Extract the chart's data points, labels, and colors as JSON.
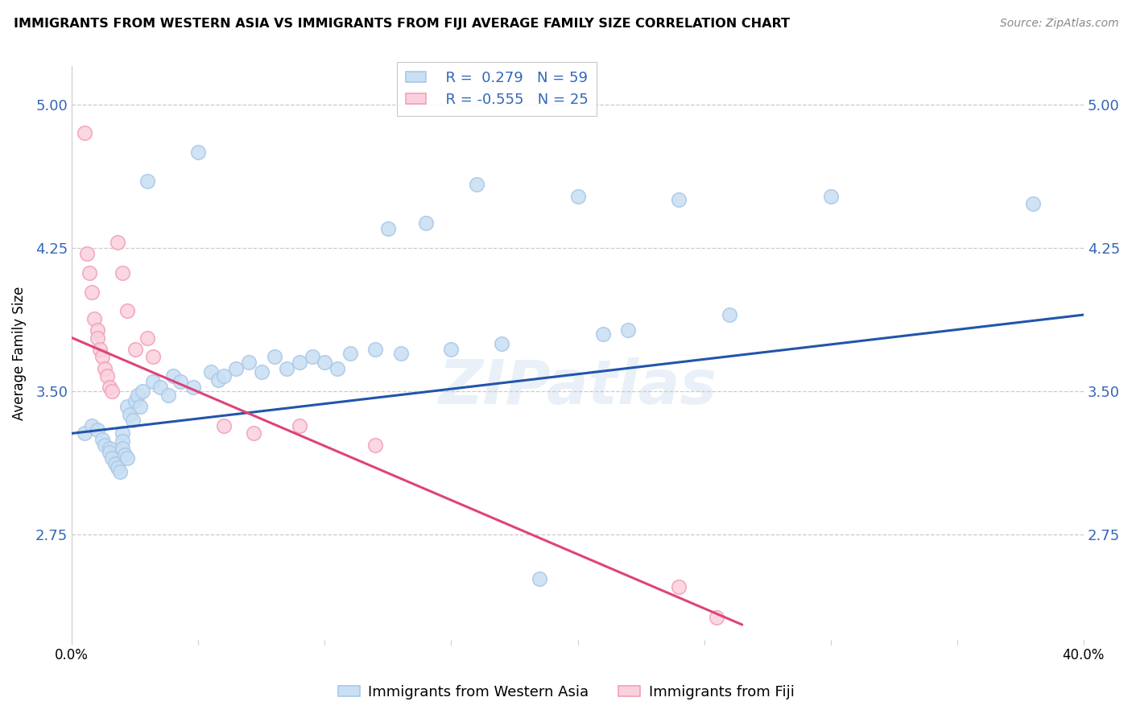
{
  "title": "IMMIGRANTS FROM WESTERN ASIA VS IMMIGRANTS FROM FIJI AVERAGE FAMILY SIZE CORRELATION CHART",
  "source": "Source: ZipAtlas.com",
  "ylabel": "Average Family Size",
  "xlim": [
    0.0,
    0.4
  ],
  "ylim": [
    2.2,
    5.2
  ],
  "yticks": [
    2.75,
    3.5,
    4.25,
    5.0
  ],
  "xticks": [
    0.0,
    0.05,
    0.1,
    0.15,
    0.2,
    0.25,
    0.3,
    0.35,
    0.4
  ],
  "xtick_labels": [
    "0.0%",
    "",
    "",
    "",
    "",
    "",
    "",
    "",
    "40.0%"
  ],
  "blue_color": "#aac8e8",
  "pink_color": "#f2a0b8",
  "blue_fill_color": "#c8dff4",
  "pink_fill_color": "#fad0dc",
  "blue_line_color": "#2255aa",
  "pink_line_color": "#dd4477",
  "label_color": "#3366bb",
  "watermark": "ZIPatlas",
  "blue_scatter_x": [
    0.005,
    0.008,
    0.01,
    0.012,
    0.013,
    0.015,
    0.015,
    0.016,
    0.017,
    0.018,
    0.019,
    0.02,
    0.02,
    0.02,
    0.021,
    0.022,
    0.022,
    0.023,
    0.024,
    0.025,
    0.026,
    0.027,
    0.028,
    0.03,
    0.032,
    0.035,
    0.038,
    0.04,
    0.043,
    0.048,
    0.05,
    0.055,
    0.058,
    0.06,
    0.065,
    0.07,
    0.075,
    0.08,
    0.085,
    0.09,
    0.095,
    0.1,
    0.105,
    0.11,
    0.12,
    0.125,
    0.13,
    0.14,
    0.15,
    0.16,
    0.17,
    0.185,
    0.2,
    0.21,
    0.22,
    0.24,
    0.26,
    0.3,
    0.38
  ],
  "blue_scatter_y": [
    3.28,
    3.32,
    3.3,
    3.25,
    3.22,
    3.2,
    3.18,
    3.15,
    3.12,
    3.1,
    3.08,
    3.28,
    3.24,
    3.2,
    3.17,
    3.15,
    3.42,
    3.38,
    3.35,
    3.45,
    3.48,
    3.42,
    3.5,
    4.6,
    3.55,
    3.52,
    3.48,
    3.58,
    3.55,
    3.52,
    4.75,
    3.6,
    3.56,
    3.58,
    3.62,
    3.65,
    3.6,
    3.68,
    3.62,
    3.65,
    3.68,
    3.65,
    3.62,
    3.7,
    3.72,
    4.35,
    3.7,
    4.38,
    3.72,
    4.58,
    3.75,
    2.52,
    4.52,
    3.8,
    3.82,
    4.5,
    3.9,
    4.52,
    4.48
  ],
  "pink_scatter_x": [
    0.005,
    0.006,
    0.007,
    0.008,
    0.009,
    0.01,
    0.01,
    0.011,
    0.012,
    0.013,
    0.014,
    0.015,
    0.016,
    0.018,
    0.02,
    0.022,
    0.025,
    0.03,
    0.032,
    0.06,
    0.072,
    0.09,
    0.12,
    0.24,
    0.255
  ],
  "pink_scatter_y": [
    4.85,
    4.22,
    4.12,
    4.02,
    3.88,
    3.82,
    3.78,
    3.72,
    3.68,
    3.62,
    3.58,
    3.52,
    3.5,
    4.28,
    4.12,
    3.92,
    3.72,
    3.78,
    3.68,
    3.32,
    3.28,
    3.32,
    3.22,
    2.48,
    2.32
  ],
  "blue_trend_x": [
    0.0,
    0.4
  ],
  "blue_trend_y": [
    3.28,
    3.9
  ],
  "pink_trend_x": [
    0.0,
    0.265
  ],
  "pink_trend_y": [
    3.78,
    2.28
  ]
}
